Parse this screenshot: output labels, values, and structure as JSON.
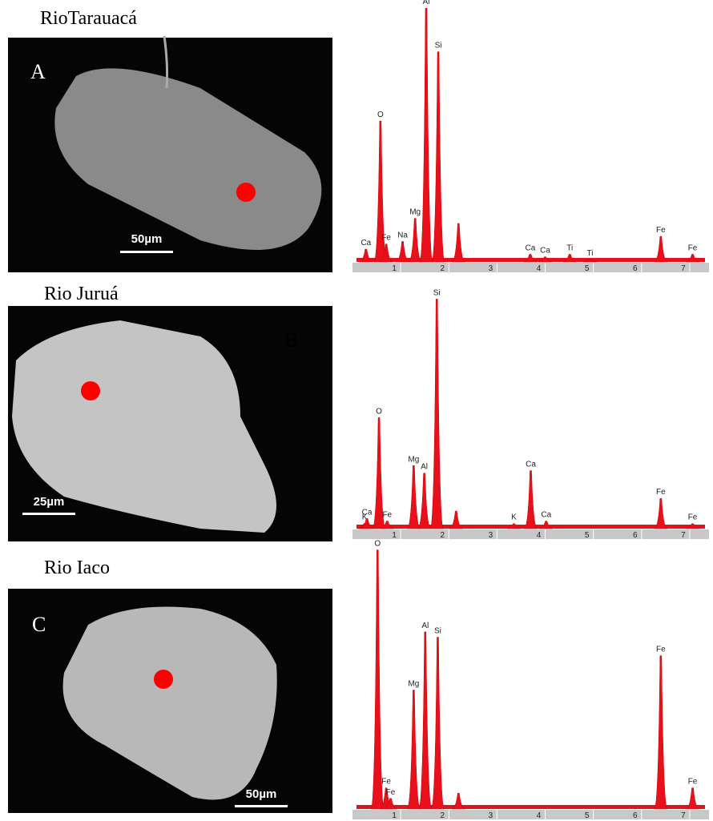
{
  "panels": [
    {
      "location": "RioTarauacá",
      "letter": "A",
      "scale_bar": "50µm",
      "spectrum": {
        "type": "eds",
        "xlim": [
          0,
          7.4
        ],
        "ylim": [
          0,
          100
        ],
        "xticks": [
          1,
          2,
          3,
          4,
          5,
          6,
          7
        ],
        "peaks": [
          {
            "label": "Ca",
            "x": 0.28,
            "height": 5
          },
          {
            "label": "O",
            "x": 0.58,
            "height": 55
          },
          {
            "label": "Fe",
            "x": 0.7,
            "height": 7
          },
          {
            "label": "Na",
            "x": 1.04,
            "height": 8
          },
          {
            "label": "Mg",
            "x": 1.3,
            "height": 17
          },
          {
            "label": "Al",
            "x": 1.53,
            "height": 99
          },
          {
            "label": "Si",
            "x": 1.78,
            "height": 82
          },
          {
            "label": null,
            "x": 2.2,
            "height": 15
          },
          {
            "label": "Ca",
            "x": 3.69,
            "height": 3
          },
          {
            "label": "Ca",
            "x": 4.0,
            "height": 2
          },
          {
            "label": "Ti",
            "x": 4.51,
            "height": 3
          },
          {
            "label": "Ti",
            "x": 4.93,
            "height": 1
          },
          {
            "label": "Fe",
            "x": 6.4,
            "height": 10
          },
          {
            "label": "Fe",
            "x": 7.06,
            "height": 3
          }
        ]
      }
    },
    {
      "location": "Rio Juruá",
      "letter": "B",
      "scale_bar": "25µm",
      "spectrum": {
        "type": "eds",
        "xlim": [
          0,
          7.4
        ],
        "ylim": [
          0,
          100
        ],
        "xticks": [
          1,
          2,
          3,
          4,
          5,
          6,
          7
        ],
        "peaks": [
          {
            "label": "K",
            "x": 0.25,
            "height": 2
          },
          {
            "label": "Ca",
            "x": 0.3,
            "height": 4
          },
          {
            "label": "O",
            "x": 0.55,
            "height": 44
          },
          {
            "label": "Fe",
            "x": 0.72,
            "height": 3
          },
          {
            "label": "Mg",
            "x": 1.27,
            "height": 25
          },
          {
            "label": "Al",
            "x": 1.49,
            "height": 22
          },
          {
            "label": "Si",
            "x": 1.75,
            "height": 91
          },
          {
            "label": null,
            "x": 2.15,
            "height": 7
          },
          {
            "label": "K",
            "x": 3.35,
            "height": 2
          },
          {
            "label": "Ca",
            "x": 3.7,
            "height": 23
          },
          {
            "label": "Ca",
            "x": 4.02,
            "height": 3
          },
          {
            "label": "Fe",
            "x": 6.4,
            "height": 12
          },
          {
            "label": "Fe",
            "x": 7.06,
            "height": 2
          }
        ]
      }
    },
    {
      "location": "Rio Iaco",
      "letter": "C",
      "scale_bar": "50µm",
      "spectrum": {
        "type": "eds",
        "xlim": [
          0,
          7.4
        ],
        "ylim": [
          0,
          100
        ],
        "xticks": [
          1,
          2,
          3,
          4,
          5,
          6,
          7
        ],
        "peaks": [
          {
            "label": "O",
            "x": 0.52,
            "height": 98
          },
          {
            "label": "Fe",
            "x": 0.7,
            "height": 8
          },
          {
            "label": "Fe",
            "x": 0.79,
            "height": 4
          },
          {
            "label": "Mg",
            "x": 1.27,
            "height": 45
          },
          {
            "label": "Al",
            "x": 1.51,
            "height": 67
          },
          {
            "label": "Si",
            "x": 1.77,
            "height": 65
          },
          {
            "label": null,
            "x": 2.2,
            "height": 6
          },
          {
            "label": "Fe",
            "x": 6.4,
            "height": 58
          },
          {
            "label": "Fe",
            "x": 7.06,
            "height": 8
          }
        ]
      }
    }
  ]
}
